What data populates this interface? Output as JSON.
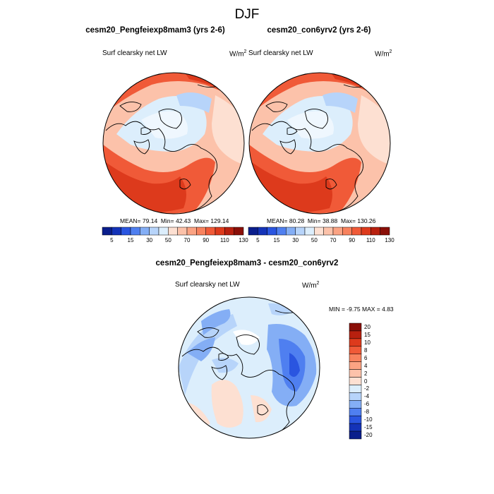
{
  "season": "DJF",
  "panels": [
    {
      "title": "cesm20_Pengfeiexp8mam3 (yrs 2-6)",
      "variable": "Surf clearsky net LW",
      "units_base": "W/m",
      "units_exp": "2",
      "stats": {
        "mean_label": "MEAN=",
        "mean": "79.14",
        "min_label": "Min=",
        "min": "42.43",
        "max_label": "Max=",
        "max": "129.14"
      }
    },
    {
      "title": "cesm20_con6yrv2 (yrs 2-6)",
      "variable": "Surf clearsky net LW",
      "units_base": "W/m",
      "units_exp": "2",
      "stats": {
        "mean_label": "MEAN=",
        "mean": "80.28",
        "min_label": "Min=",
        "min": "38.88",
        "max_label": "Max=",
        "max": "130.26"
      }
    }
  ],
  "diff_panel": {
    "title": "cesm20_Pengfeiexp8mam3 - cesm20_con6yrv2",
    "variable": "Surf clearsky net LW",
    "units_base": "W/m",
    "units_exp": "2",
    "minmax": "MIN =  -9.75 MAX =   4.83"
  },
  "abs_colorbar": {
    "colors": [
      "#0a1e8c",
      "#1433b8",
      "#2a55e0",
      "#4f7ff0",
      "#84aef5",
      "#b7d4fa",
      "#dceefc",
      "#fde0d2",
      "#fcc2aa",
      "#fba383",
      "#f8825e",
      "#f05a38",
      "#dd3a1c",
      "#b8200f",
      "#8a0f08"
    ],
    "tick_labels": [
      "5",
      "15",
      "30",
      "50",
      "70",
      "90",
      "110",
      "130"
    ]
  },
  "diff_colorbar": {
    "colors": [
      "#8a0f08",
      "#b8200f",
      "#dd3a1c",
      "#f05a38",
      "#f8825e",
      "#fba383",
      "#fcc2aa",
      "#fde0d2",
      "#dceefc",
      "#b7d4fa",
      "#84aef5",
      "#4f7ff0",
      "#2a55e0",
      "#1433b8",
      "#0a1e8c"
    ],
    "tick_labels": [
      "20",
      "15",
      "10",
      "8",
      "6",
      "4",
      "2",
      "0",
      "-2",
      "-4",
      "-6",
      "-8",
      "-10",
      "-15",
      "-20"
    ]
  }
}
